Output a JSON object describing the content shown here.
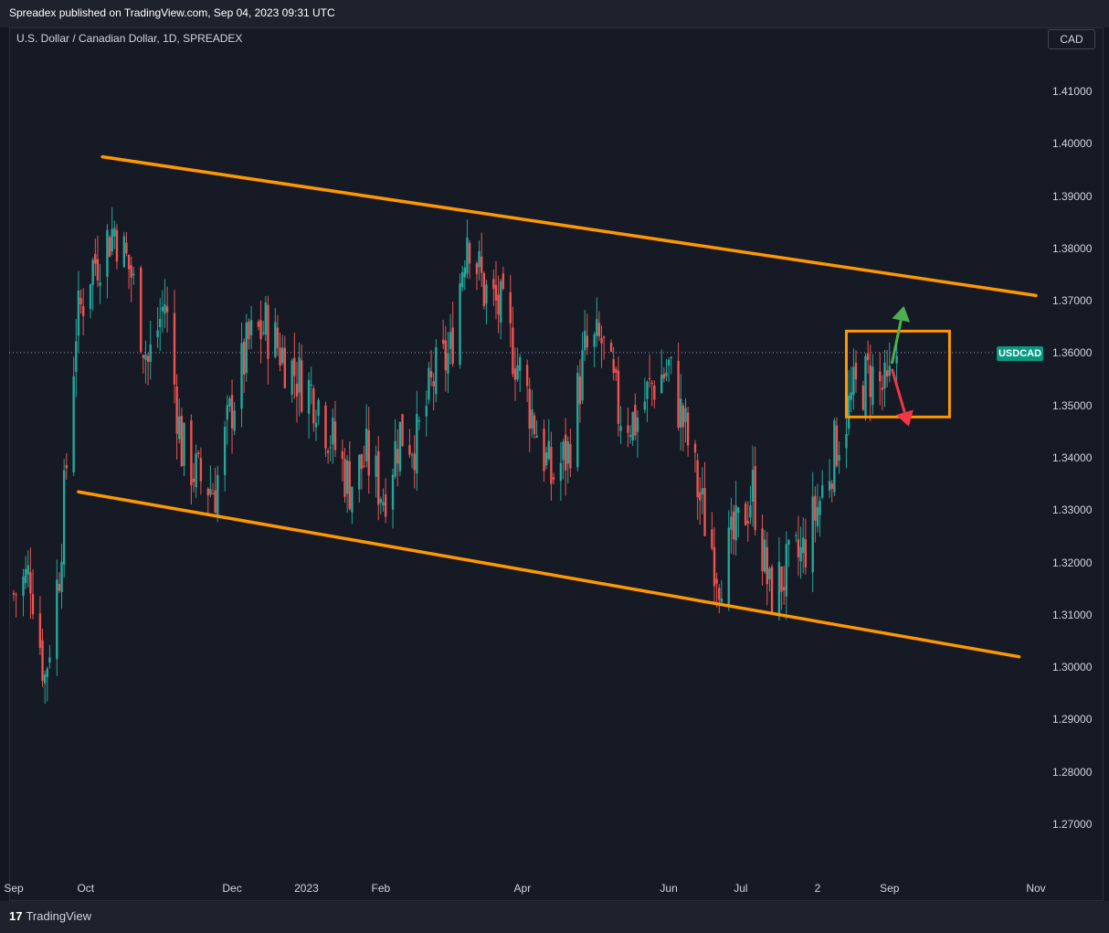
{
  "header": {
    "published": "Spreadex published on TradingView.com, Sep 04, 2023 09:31 UTC"
  },
  "symbol": {
    "title": "U.S. Dollar / Canadian Dollar, 1D, SPREADEX",
    "currency": "CAD",
    "ticker": "USDCAD",
    "last_price": 1.3601
  },
  "footer": {
    "logo_mark": "17",
    "logo_text": "TradingView"
  },
  "colors": {
    "bg": "#131722",
    "up": "#26a69a",
    "down": "#ef5350",
    "channel": "#ff9800",
    "arrow_up": "#4caf50",
    "arrow_down": "#f23645",
    "badge": "#089981"
  },
  "chart_data": {
    "type": "candlestick",
    "title": "U.S. Dollar / Canadian Dollar, 1D, SPREADEX",
    "xlabel": "",
    "ylabel": "",
    "ylim": [
      1.262,
      1.424
    ],
    "y_ticks": [
      "1.41000",
      "1.40000",
      "1.39000",
      "1.38000",
      "1.37000",
      "1.36000",
      "1.35000",
      "1.34000",
      "1.33000",
      "1.32000",
      "1.31000",
      "1.30000",
      "1.29000",
      "1.28000",
      "1.27000"
    ],
    "x_ticks": [
      "Sep",
      "Oct",
      "Dec",
      "2023",
      "Feb",
      "Apr",
      "Jun",
      "Jul",
      "2",
      "Sep",
      "Nov"
    ],
    "x_ticks_dates": [
      "2022-09-01",
      "2022-10-01",
      "2022-12-01",
      "2023-01-01",
      "2023-02-01",
      "2023-04-01",
      "2023-06-01",
      "2023-07-01",
      "2023-08-02",
      "2023-09-01",
      "2023-11-01"
    ],
    "price_path": [
      [
        "2022-09-01",
        1.314
      ],
      [
        "2022-09-08",
        1.318
      ],
      [
        "2022-09-14",
        1.298
      ],
      [
        "2022-09-20",
        1.319
      ],
      [
        "2022-09-27",
        1.365
      ],
      [
        "2022-10-03",
        1.376
      ],
      [
        "2022-10-13",
        1.384
      ],
      [
        "2022-10-20",
        1.375
      ],
      [
        "2022-10-27",
        1.358
      ],
      [
        "2022-11-03",
        1.37
      ],
      [
        "2022-11-10",
        1.342
      ],
      [
        "2022-11-17",
        1.336
      ],
      [
        "2022-11-24",
        1.334
      ],
      [
        "2022-12-01",
        1.35
      ],
      [
        "2022-12-08",
        1.362
      ],
      [
        "2022-12-15",
        1.365
      ],
      [
        "2022-12-22",
        1.36
      ],
      [
        "2022-12-29",
        1.355
      ],
      [
        "2023-01-05",
        1.352
      ],
      [
        "2023-01-12",
        1.343
      ],
      [
        "2023-01-19",
        1.335
      ],
      [
        "2023-01-26",
        1.34
      ],
      [
        "2023-02-02",
        1.333
      ],
      [
        "2023-02-09",
        1.345
      ],
      [
        "2023-02-16",
        1.343
      ],
      [
        "2023-02-23",
        1.355
      ],
      [
        "2023-03-02",
        1.36
      ],
      [
        "2023-03-09",
        1.384
      ],
      [
        "2023-03-16",
        1.372
      ],
      [
        "2023-03-23",
        1.368
      ],
      [
        "2023-03-30",
        1.358
      ],
      [
        "2023-04-06",
        1.347
      ],
      [
        "2023-04-13",
        1.336
      ],
      [
        "2023-04-20",
        1.341
      ],
      [
        "2023-04-27",
        1.36
      ],
      [
        "2023-05-04",
        1.362
      ],
      [
        "2023-05-11",
        1.349
      ],
      [
        "2023-05-18",
        1.347
      ],
      [
        "2023-05-25",
        1.354
      ],
      [
        "2023-06-01",
        1.357
      ],
      [
        "2023-06-08",
        1.345
      ],
      [
        "2023-06-15",
        1.33
      ],
      [
        "2023-06-22",
        1.318
      ],
      [
        "2023-06-29",
        1.325
      ],
      [
        "2023-07-06",
        1.334
      ],
      [
        "2023-07-13",
        1.314
      ],
      [
        "2023-07-20",
        1.318
      ],
      [
        "2023-07-27",
        1.322
      ],
      [
        "2023-08-03",
        1.332
      ],
      [
        "2023-08-10",
        1.343
      ],
      [
        "2023-08-17",
        1.352
      ],
      [
        "2023-08-24",
        1.356
      ],
      [
        "2023-08-31",
        1.352
      ],
      [
        "2023-09-04",
        1.36
      ]
    ],
    "annotations": {
      "channel_upper": [
        [
          "2022-10-08",
          1.3975
        ],
        [
          "2023-11-01",
          1.371
        ]
      ],
      "channel_lower": [
        [
          "2022-09-28",
          1.3335
        ],
        [
          "2023-10-25",
          1.302
        ]
      ],
      "range_box": {
        "from": "2023-08-14",
        "to": "2023-09-26",
        "top": 1.3642,
        "bottom": 1.3478
      },
      "arrow_up": [
        [
          "2023-09-02",
          1.358
        ],
        [
          "2023-09-07",
          1.369
        ]
      ],
      "arrow_down": [
        [
          "2023-09-02",
          1.357
        ],
        [
          "2023-09-09",
          1.346
        ]
      ]
    }
  }
}
